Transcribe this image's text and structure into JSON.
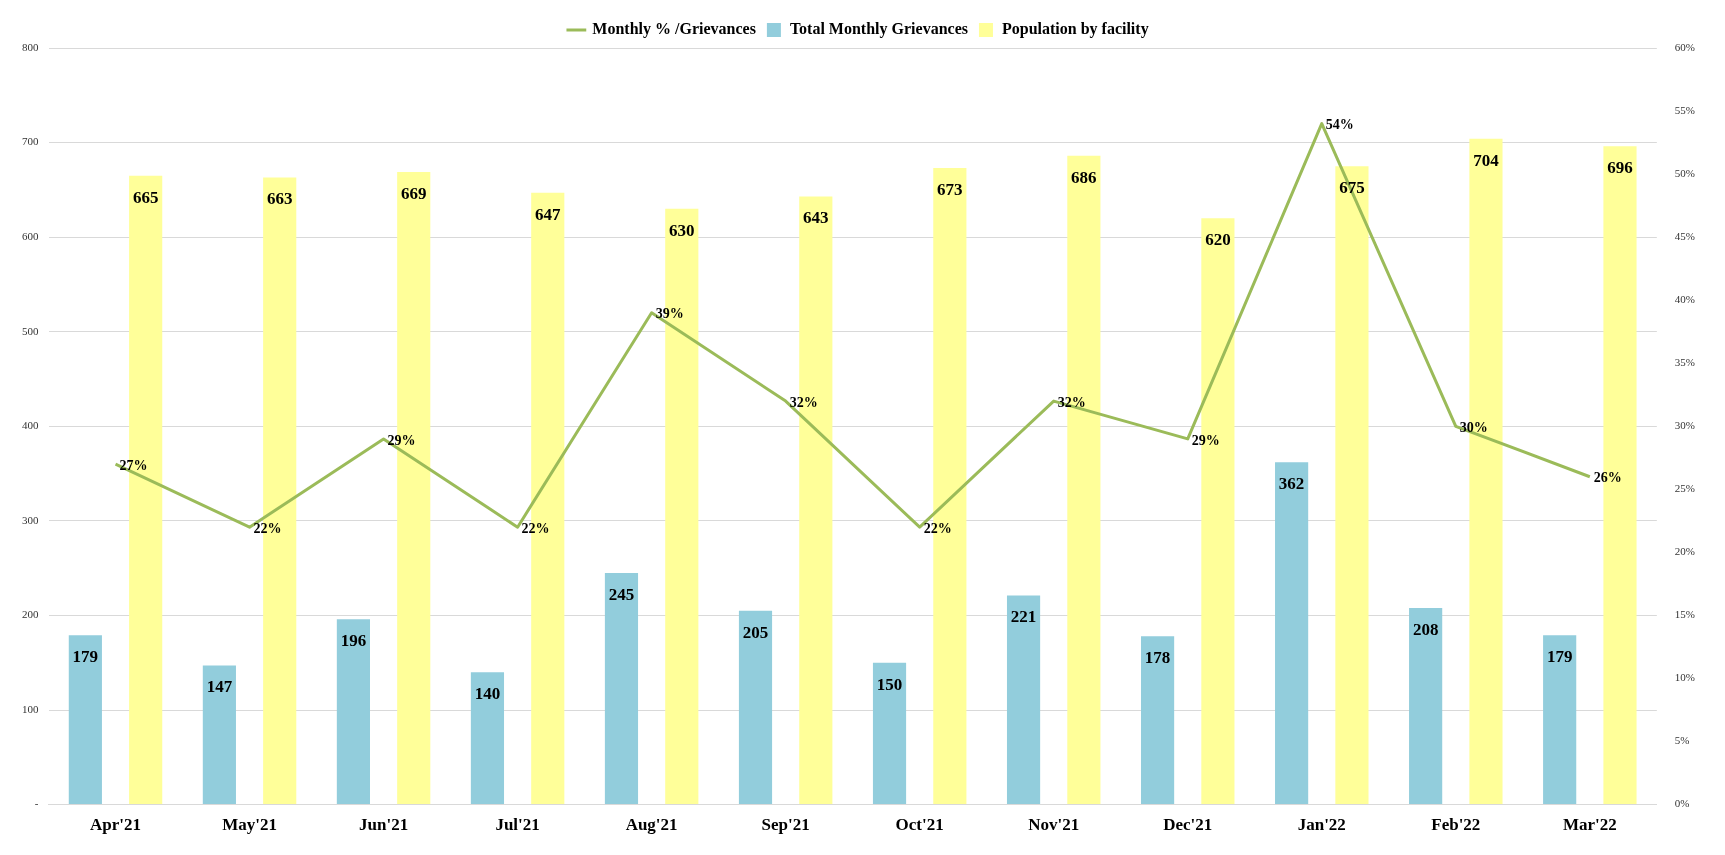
{
  "chart_data": {
    "type": "bar",
    "categories": [
      "Apr'21",
      "May'21",
      "Jun'21",
      "Jul'21",
      "Aug'21",
      "Sep'21",
      "Oct'21",
      "Nov'21",
      "Dec'21",
      "Jan'22",
      "Feb'22",
      "Mar'22"
    ],
    "series": [
      {
        "name": "Total Monthly Grievances",
        "color": "#92cddc",
        "values": [
          179,
          147,
          196,
          140,
          245,
          205,
          150,
          221,
          178,
          362,
          208,
          179
        ]
      },
      {
        "name": "Population by facility",
        "color": "#ffff99",
        "values": [
          665,
          663,
          669,
          647,
          630,
          643,
          673,
          686,
          620,
          675,
          704,
          696
        ]
      },
      {
        "name": "Monthly % /Grievances",
        "type": "line",
        "axis": "y2",
        "color": "#9bbb59",
        "values": [
          27,
          22,
          29,
          22,
          39,
          32,
          22,
          32,
          29,
          54,
          30,
          26
        ],
        "value_labels": [
          "27%",
          "22%",
          "29%",
          "22%",
          "39%",
          "32%",
          "22%",
          "32%",
          "29%",
          "54%",
          "30%",
          "26%"
        ]
      }
    ],
    "ylim": [
      0,
      800
    ],
    "yticks": [
      {
        "value": 0,
        "label": "-"
      },
      100,
      200,
      300,
      400,
      500,
      600,
      700,
      800
    ],
    "y2lim": [
      0,
      60
    ],
    "y2ticks": [
      {
        "value": 0,
        "label": "0%"
      },
      {
        "value": 5,
        "label": "5%"
      },
      {
        "value": 10,
        "label": "10%"
      },
      {
        "value": 15,
        "label": "15%"
      },
      {
        "value": 20,
        "label": "20%"
      },
      {
        "value": 25,
        "label": "25%"
      },
      {
        "value": 30,
        "label": "30%"
      },
      {
        "value": 35,
        "label": "35%"
      },
      {
        "value": 40,
        "label": "40%"
      },
      {
        "value": 45,
        "label": "45%"
      },
      {
        "value": 50,
        "label": "50%"
      },
      {
        "value": 55,
        "label": "55%"
      },
      {
        "value": 60,
        "label": "60%"
      }
    ],
    "grid": "y",
    "legend": "top",
    "data_labels": true,
    "marker": "none",
    "line_style": "solid"
  }
}
